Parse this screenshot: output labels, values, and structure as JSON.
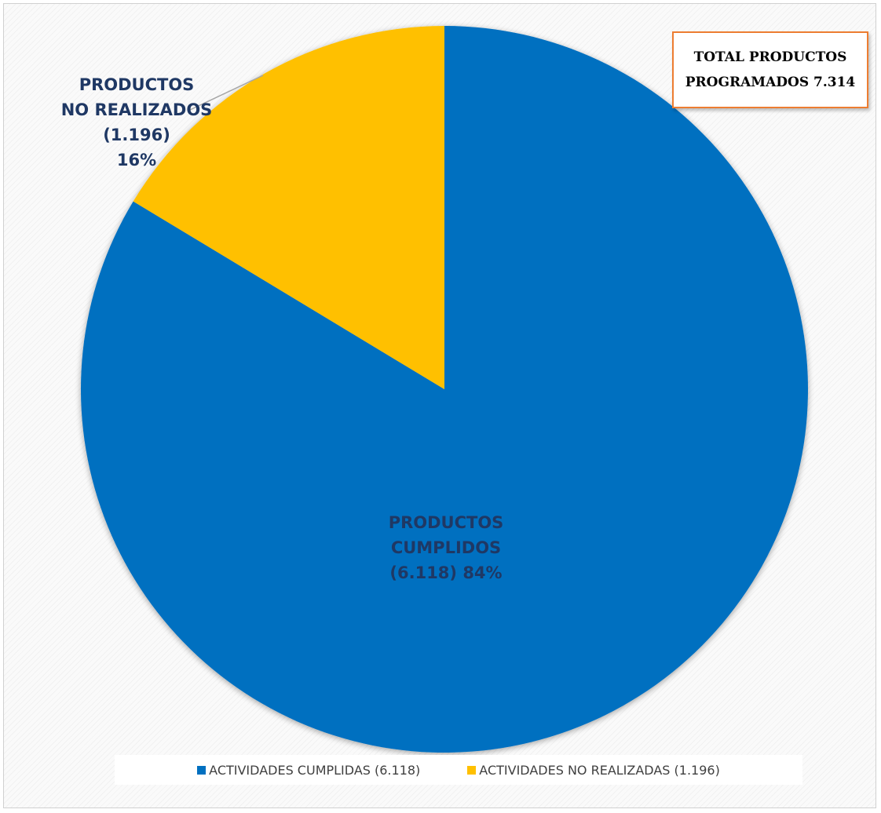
{
  "chart_data": {
    "type": "pie",
    "total_label_line1": "TOTAL PRODUCTOS",
    "total_label_line2": "PROGRAMADOS 7.314",
    "slices": [
      {
        "name": "ACTIVIDADES CUMPLIDAS  (6.118)",
        "value": 6118,
        "percent": 84,
        "color": "#0070c0",
        "label_lines": [
          "PRODUCTOS",
          "CUMPLIDOS",
          "(6.118) 84%"
        ]
      },
      {
        "name": "ACTIVIDADES NO REALIZADAS (1.196)",
        "value": 1196,
        "percent": 16,
        "color": "#ffc000",
        "label_lines": [
          "PRODUCTOS",
          "NO REALIZADOS",
          "(1.196)",
          "16%"
        ]
      }
    ],
    "legend_position": "bottom"
  }
}
